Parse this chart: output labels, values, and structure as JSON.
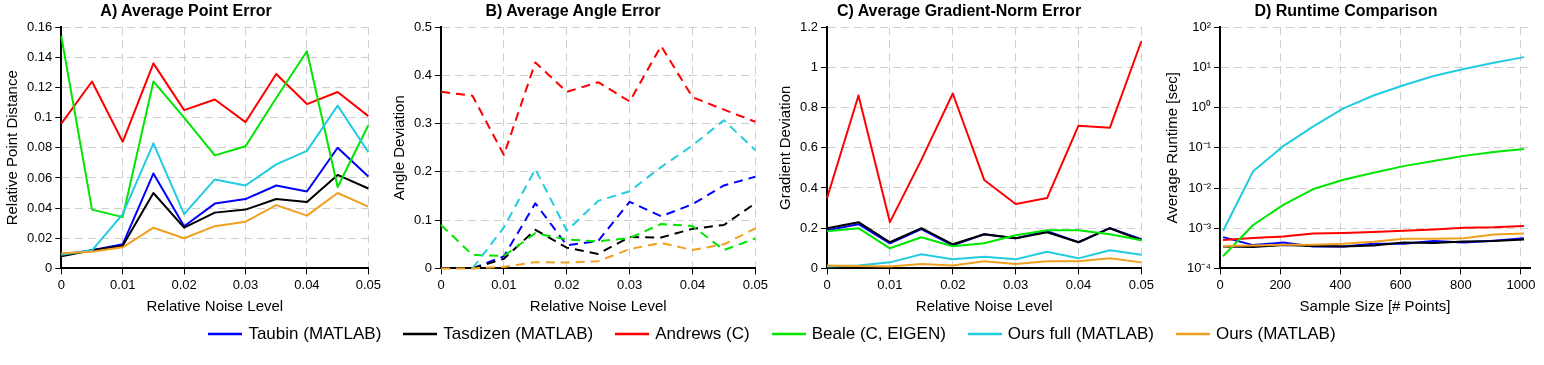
{
  "chart_data": [
    {
      "type": "line",
      "title": "A) Average Point Error",
      "xlabel": "Relative Noise Level",
      "ylabel": "Relative Point Distance",
      "x": [
        0,
        0.005,
        0.01,
        0.015,
        0.02,
        0.025,
        0.03,
        0.035,
        0.04,
        0.045,
        0.05
      ],
      "xlim": [
        0,
        0.05
      ],
      "xticks": [
        0,
        0.01,
        0.02,
        0.03,
        0.04,
        0.05
      ],
      "ylim": [
        0,
        0.16
      ],
      "yticks": [
        0,
        0.02,
        0.04,
        0.06,
        0.08,
        0.1,
        0.12,
        0.14,
        0.16
      ],
      "grid": true,
      "legend": "bottom",
      "marker": "none",
      "line_style": "solid",
      "series": [
        {
          "name": "Taubin (MATLAB)",
          "color": "#0000ff",
          "values": [
            0.009,
            0.012,
            0.016,
            0.063,
            0.028,
            0.043,
            0.046,
            0.055,
            0.051,
            0.08,
            0.061
          ]
        },
        {
          "name": "Tasdizen (MATLAB)",
          "color": "#000000",
          "values": [
            0.008,
            0.012,
            0.015,
            0.05,
            0.027,
            0.037,
            0.039,
            0.046,
            0.044,
            0.062,
            0.053
          ]
        },
        {
          "name": "Andrews (C)",
          "color": "#ff0000",
          "values": [
            0.096,
            0.124,
            0.084,
            0.136,
            0.105,
            0.112,
            0.097,
            0.129,
            0.109,
            0.117,
            0.101
          ]
        },
        {
          "name": "Beale (C, EIGEN)",
          "color": "#00e600",
          "values": [
            0.154,
            0.039,
            0.034,
            0.124,
            0.1,
            0.075,
            0.081,
            0.113,
            0.144,
            0.054,
            0.095
          ]
        },
        {
          "name": "Ours full (MATLAB)",
          "color": "#22cce0",
          "values": [
            0.009,
            0.012,
            0.036,
            0.083,
            0.036,
            0.059,
            0.055,
            0.069,
            0.078,
            0.108,
            0.077
          ]
        },
        {
          "name": "Ours (MATLAB)",
          "color": "#f0a020",
          "values": [
            0.01,
            0.011,
            0.014,
            0.027,
            0.02,
            0.028,
            0.031,
            0.042,
            0.035,
            0.05,
            0.041
          ]
        }
      ]
    },
    {
      "type": "line",
      "title": "B) Average Angle Error",
      "xlabel": "Relative Noise Level",
      "ylabel": "Angle Deviation",
      "x": [
        0,
        0.005,
        0.01,
        0.015,
        0.02,
        0.025,
        0.03,
        0.035,
        0.04,
        0.045,
        0.05
      ],
      "xlim": [
        0,
        0.05
      ],
      "xticks": [
        0,
        0.01,
        0.02,
        0.03,
        0.04,
        0.05
      ],
      "ylim": [
        0,
        0.5
      ],
      "yticks": [
        0,
        0.1,
        0.2,
        0.3,
        0.4,
        0.5
      ],
      "grid": true,
      "legend": "bottom",
      "marker": "none",
      "line_style": "dashed",
      "series": [
        {
          "name": "Taubin (MATLAB)",
          "color": "#0000ff",
          "values": [
            null,
            0,
            0.025,
            0.135,
            0.048,
            0.057,
            0.138,
            0.108,
            0.133,
            0.172,
            0.19
          ]
        },
        {
          "name": "Tasdizen (MATLAB)",
          "color": "#000000",
          "values": [
            null,
            0,
            0.02,
            0.08,
            0.043,
            0.03,
            0.065,
            0.064,
            0.082,
            0.09,
            0.135
          ]
        },
        {
          "name": "Andrews (C)",
          "color": "#ff0000",
          "values": [
            0.366,
            0.358,
            0.235,
            0.427,
            0.366,
            0.386,
            0.346,
            0.461,
            0.355,
            0.329,
            0.304
          ]
        },
        {
          "name": "Beale (C, EIGEN)",
          "color": "#00e600",
          "values": [
            0.09,
            0.028,
            0.026,
            0.073,
            0.06,
            0.056,
            0.063,
            0.092,
            0.088,
            0.038,
            0.062
          ]
        },
        {
          "name": "Ours full (MATLAB)",
          "color": "#22cce0",
          "values": [
            null,
            0,
            0.085,
            0.206,
            0.078,
            0.14,
            0.16,
            0.21,
            0.255,
            0.307,
            0.245
          ]
        },
        {
          "name": "Ours (MATLAB)",
          "color": "#f0a020",
          "values": [
            0,
            0,
            0.003,
            0.013,
            0.012,
            0.015,
            0.04,
            0.053,
            0.038,
            0.05,
            0.083
          ]
        }
      ]
    },
    {
      "type": "line",
      "title": "C) Average Gradient-Norm Error",
      "xlabel": "Relative Noise Level",
      "ylabel": "Gradient Deviation",
      "x": [
        0,
        0.005,
        0.01,
        0.015,
        0.02,
        0.025,
        0.03,
        0.035,
        0.04,
        0.045,
        0.05
      ],
      "xlim": [
        0,
        0.05
      ],
      "xticks": [
        0,
        0.01,
        0.02,
        0.03,
        0.04,
        0.05
      ],
      "ylim": [
        0,
        1.2
      ],
      "yticks": [
        0,
        0.2,
        0.4,
        0.6,
        0.8,
        1,
        1.2
      ],
      "grid": true,
      "legend": "bottom",
      "marker": "none",
      "line_style": "solid",
      "series": [
        {
          "name": "Taubin (MATLAB)",
          "color": "#0000ff",
          "values": [
            0.19,
            0.22,
            0.125,
            0.195,
            0.115,
            0.17,
            0.15,
            0.185,
            0.13,
            0.2,
            0.145
          ]
        },
        {
          "name": "Tasdizen (MATLAB)",
          "color": "#000000",
          "values": [
            0.2,
            0.23,
            0.13,
            0.2,
            0.12,
            0.17,
            0.15,
            0.18,
            0.13,
            0.2,
            0.14
          ]
        },
        {
          "name": "Andrews (C)",
          "color": "#ff0000",
          "values": [
            0.35,
            0.86,
            0.23,
            0.54,
            0.87,
            0.44,
            0.32,
            0.35,
            0.71,
            0.7,
            1.13
          ]
        },
        {
          "name": "Beale (C, EIGEN)",
          "color": "#00e600",
          "values": [
            0.185,
            0.2,
            0.1,
            0.155,
            0.11,
            0.125,
            0.165,
            0.19,
            0.19,
            0.17,
            0.14
          ]
        },
        {
          "name": "Ours full (MATLAB)",
          "color": "#22cce0",
          "values": [
            0.01,
            0.015,
            0.03,
            0.07,
            0.045,
            0.058,
            0.045,
            0.083,
            0.05,
            0.09,
            0.068
          ]
        },
        {
          "name": "Ours (MATLAB)",
          "color": "#f0a020",
          "values": [
            0.015,
            0.012,
            0.01,
            0.022,
            0.015,
            0.035,
            0.022,
            0.035,
            0.035,
            0.05,
            0.03
          ]
        }
      ]
    },
    {
      "type": "line",
      "title": "D) Runtime Comparison",
      "xlabel": "Sample Size [# Points]",
      "ylabel": "Average Runtime [sec]",
      "x": [
        10,
        110,
        210,
        310,
        410,
        510,
        610,
        710,
        810,
        910,
        1010
      ],
      "xlim": [
        0,
        1030
      ],
      "xticks": [
        0,
        200,
        400,
        600,
        800,
        1000
      ],
      "log": "y",
      "ylim": [
        0.0001,
        100
      ],
      "yticks": [
        {
          "value": 0.0001,
          "label": "10⁻⁴"
        },
        {
          "value": 0.001,
          "label": "10⁻³"
        },
        {
          "value": 0.01,
          "label": "10⁻²"
        },
        {
          "value": 0.1,
          "label": "10⁻¹"
        },
        {
          "value": 1,
          "label": "10⁰"
        },
        {
          "value": 10,
          "label": "10¹"
        },
        {
          "value": 100,
          "label": "10²"
        }
      ],
      "grid": true,
      "legend": "bottom",
      "marker": "none",
      "line_style": "solid",
      "series": [
        {
          "name": "Taubin (MATLAB)",
          "color": "#0000ff",
          "values": [
            0.0006,
            0.00038,
            0.00044,
            0.00035,
            0.00035,
            0.00041,
            0.00041,
            0.00048,
            0.00044,
            0.00049,
            0.00056
          ]
        },
        {
          "name": "Tasdizen (MATLAB)",
          "color": "#000000",
          "values": [
            0.00035,
            0.00034,
            0.00038,
            0.00036,
            0.00035,
            0.00037,
            0.00044,
            0.00043,
            0.00047,
            0.00048,
            0.00052
          ]
        },
        {
          "name": "Andrews (C)",
          "color": "#ff0000",
          "values": [
            0.00051,
            0.00057,
            0.00062,
            0.00074,
            0.00076,
            0.00081,
            0.00086,
            0.00093,
            0.00103,
            0.00106,
            0.00114
          ]
        },
        {
          "name": "Beale (C, EIGEN)",
          "color": "#00e600",
          "values": [
            0.0002,
            0.0012,
            0.0038,
            0.0094,
            0.016,
            0.024,
            0.035,
            0.047,
            0.063,
            0.079,
            0.093
          ]
        },
        {
          "name": "Ours full (MATLAB)",
          "color": "#22cce0",
          "values": [
            0.00085,
            0.026,
            0.11,
            0.34,
            0.96,
            2.0,
            3.6,
            6.1,
            9.1,
            13,
            18
          ]
        },
        {
          "name": "Ours (MATLAB)",
          "color": "#f0a020",
          "values": [
            0.00036,
            0.00037,
            0.00039,
            0.00039,
            0.00041,
            0.00046,
            0.00055,
            0.00055,
            0.00056,
            0.0007,
            0.00074
          ]
        }
      ]
    }
  ]
}
